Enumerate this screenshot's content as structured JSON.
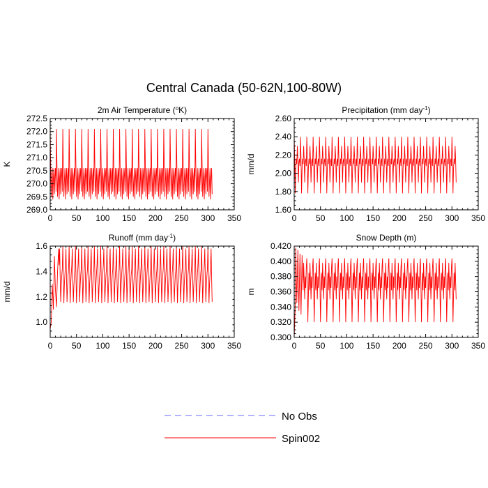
{
  "figure_title": "Central Canada (50-62N,100-80W)",
  "legend": [
    {
      "label": "No Obs",
      "color": "#6666ff",
      "dash": true
    },
    {
      "label": "Spin002",
      "color": "#ff0000",
      "dash": false
    }
  ],
  "chart_data": [
    {
      "type": "line",
      "title_main": "2m Air Temperature (",
      "title_sup": "o",
      "title_end": "K)",
      "ylabel": "K",
      "xlim": [
        0,
        350
      ],
      "ylim": [
        269.0,
        272.5
      ],
      "xticks": [
        0,
        50,
        100,
        150,
        200,
        250,
        300,
        350
      ],
      "yticks": [
        269.0,
        269.5,
        270.0,
        270.5,
        271.0,
        271.5,
        272.0,
        272.5
      ],
      "ytick_decimals": 1,
      "series": [
        {
          "name": "Spin002",
          "color": "#ff0000",
          "x_start": 0,
          "x_end": 308,
          "period": 12,
          "cycle": [
            272.1,
            270.6,
            269.5,
            270.1,
            270.6,
            269.4,
            270.2,
            270.6,
            269.6,
            270.3,
            270.6,
            269.7
          ],
          "spinup": []
        }
      ]
    },
    {
      "type": "line",
      "title_main": "Precipitation (mm day",
      "title_sup": "-1",
      "title_end": ")",
      "ylabel": "mm/d",
      "xlim": [
        0,
        350
      ],
      "ylim": [
        1.6,
        2.6
      ],
      "xticks": [
        0,
        50,
        100,
        150,
        200,
        250,
        300,
        350
      ],
      "yticks": [
        1.6,
        1.8,
        2.0,
        2.2,
        2.4,
        2.6
      ],
      "ytick_decimals": 2,
      "series": [
        {
          "name": "Spin002",
          "color": "#ff0000",
          "x_start": 0,
          "x_end": 308,
          "period": 12,
          "cycle": [
            2.4,
            2.16,
            1.78,
            2.05,
            2.16,
            2.1,
            2.3,
            2.15,
            1.9,
            2.12,
            2.16,
            2.08
          ],
          "spinup": []
        }
      ]
    },
    {
      "type": "line",
      "title_main": "Runoff (mm day",
      "title_sup": "-1",
      "title_end": ")",
      "ylabel": "mm/d",
      "xlim": [
        0,
        350
      ],
      "ylim": [
        0.88,
        1.6
      ],
      "xticks": [
        0,
        50,
        100,
        150,
        200,
        250,
        300,
        350
      ],
      "yticks": [
        1.0,
        1.2,
        1.4,
        1.6
      ],
      "ytick_decimals": 1,
      "series": [
        {
          "name": "Spin002",
          "color": "#ff0000",
          "x_start": 0,
          "x_end": 308,
          "period": 12,
          "cycle": [
            1.6,
            1.36,
            1.15,
            1.3,
            1.38,
            1.45,
            1.58,
            1.35,
            1.16,
            1.28,
            1.37,
            1.42
          ],
          "spinup": [
            [
              0,
              0.95
            ],
            [
              2,
              1.0
            ],
            [
              4,
              1.3
            ],
            [
              6,
              1.1
            ],
            [
              8,
              1.52
            ],
            [
              10,
              1.25
            ],
            [
              12,
              1.12
            ],
            [
              14,
              1.4
            ],
            [
              16,
              1.58
            ]
          ]
        }
      ]
    },
    {
      "type": "line",
      "title_main": "Snow Depth (m)",
      "title_sup": "",
      "title_end": "",
      "ylabel": "m",
      "xlim": [
        0,
        350
      ],
      "ylim": [
        0.3,
        0.42
      ],
      "xticks": [
        0,
        50,
        100,
        150,
        200,
        250,
        300,
        350
      ],
      "yticks": [
        0.3,
        0.32,
        0.34,
        0.36,
        0.38,
        0.4,
        0.42
      ],
      "ytick_decimals": 3,
      "series": [
        {
          "name": "Spin002",
          "color": "#ff0000",
          "x_start": 0,
          "x_end": 308,
          "period": 12,
          "cycle": [
            0.404,
            0.37,
            0.32,
            0.355,
            0.385,
            0.362,
            0.398,
            0.374,
            0.35,
            0.38,
            0.365,
            0.392
          ],
          "spinup": [
            [
              0,
              0.3
            ],
            [
              2,
              0.34
            ],
            [
              3,
              0.418
            ],
            [
              5,
              0.345
            ],
            [
              7,
              0.415
            ],
            [
              9,
              0.335
            ],
            [
              11,
              0.41
            ],
            [
              13,
              0.33
            ],
            [
              15,
              0.408
            ]
          ]
        }
      ]
    }
  ]
}
